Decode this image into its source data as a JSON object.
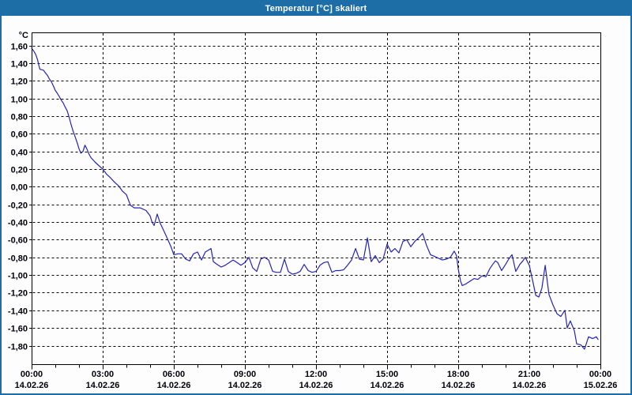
{
  "window": {
    "title": "Temperatur [°C] skaliert"
  },
  "colors": {
    "titlebar_background": "#1d6da6",
    "window_border": "#1d6da6",
    "title_text": "#ffffff",
    "client_background": "#fdfdfd",
    "plot_frame": "#000000",
    "grid": "#000000",
    "axis_text": "#000008",
    "series_line": "#2424b4"
  },
  "chart_data": {
    "type": "line",
    "title": "Temperatur [°C] skaliert",
    "xlabel": "",
    "ylabel": "°C",
    "grid": true,
    "legend_position": "none",
    "ylim": [
      -1.8,
      1.6
    ],
    "y_tick_step": 0.2,
    "y_tick_labels": [
      "1,60",
      "1,40",
      "1,20",
      "1,00",
      "0,80",
      "0,60",
      "0,40",
      "0,20",
      "0,00",
      "-0,20",
      "-0,40",
      "-0,60",
      "-0,80",
      "-1,00",
      "-1,20",
      "-1,40",
      "-1,60",
      "-1,80"
    ],
    "xlim_hours": [
      0,
      24
    ],
    "minor_tick_every_hours": 1,
    "x_ticks": [
      {
        "hour": 0,
        "time": "00:00",
        "date": "14.02.26"
      },
      {
        "hour": 3,
        "time": "03:00",
        "date": "14.02.26"
      },
      {
        "hour": 6,
        "time": "06:00",
        "date": "14.02.26"
      },
      {
        "hour": 9,
        "time": "09:00",
        "date": "14.02.26"
      },
      {
        "hour": 12,
        "time": "12:00",
        "date": "14.02.26"
      },
      {
        "hour": 15,
        "time": "15:00",
        "date": "14.02.26"
      },
      {
        "hour": 18,
        "time": "18:00",
        "date": "14.02.26"
      },
      {
        "hour": 21,
        "time": "21:00",
        "date": "14.02.26"
      },
      {
        "hour": 24,
        "time": "00:00",
        "date": "15.02.26"
      }
    ],
    "series": [
      {
        "name": "Temperatur",
        "color": "#2424b4",
        "points_hour_value": [
          [
            0,
            1.57
          ],
          [
            0.08,
            1.54
          ],
          [
            0.17,
            1.5
          ],
          [
            0.25,
            1.44
          ],
          [
            0.3,
            1.38
          ],
          [
            0.35,
            1.33
          ],
          [
            0.5,
            1.32
          ],
          [
            0.58,
            1.29
          ],
          [
            0.67,
            1.26
          ],
          [
            0.75,
            1.22
          ],
          [
            0.83,
            1.19
          ],
          [
            0.92,
            1.14
          ],
          [
            1,
            1.09
          ],
          [
            1.08,
            1.06
          ],
          [
            1.17,
            1.02
          ],
          [
            1.25,
            0.98
          ],
          [
            1.33,
            0.95
          ],
          [
            1.42,
            0.9
          ],
          [
            1.5,
            0.86
          ],
          [
            1.58,
            0.79
          ],
          [
            1.67,
            0.7
          ],
          [
            1.75,
            0.63
          ],
          [
            1.83,
            0.57
          ],
          [
            1.92,
            0.5
          ],
          [
            2,
            0.43
          ],
          [
            2.08,
            0.38
          ],
          [
            2.17,
            0.4
          ],
          [
            2.25,
            0.47
          ],
          [
            2.33,
            0.43
          ],
          [
            2.42,
            0.37
          ],
          [
            2.5,
            0.33
          ],
          [
            2.67,
            0.28
          ],
          [
            2.83,
            0.24
          ],
          [
            3,
            0.2
          ],
          [
            3.17,
            0.14
          ],
          [
            3.33,
            0.1
          ],
          [
            3.5,
            0.05
          ],
          [
            3.67,
            0.01
          ],
          [
            3.83,
            -0.05
          ],
          [
            4,
            -0.09
          ],
          [
            4.17,
            -0.21
          ],
          [
            4.33,
            -0.24
          ],
          [
            4.58,
            -0.24
          ],
          [
            4.83,
            -0.27
          ],
          [
            5,
            -0.33
          ],
          [
            5.08,
            -0.4
          ],
          [
            5.17,
            -0.44
          ],
          [
            5.3,
            -0.31
          ],
          [
            5.42,
            -0.41
          ],
          [
            5.58,
            -0.5
          ],
          [
            5.75,
            -0.6
          ],
          [
            5.88,
            -0.68
          ],
          [
            6,
            -0.77
          ],
          [
            6.17,
            -0.76
          ],
          [
            6.33,
            -0.76
          ],
          [
            6.5,
            -0.82
          ],
          [
            6.67,
            -0.84
          ],
          [
            6.83,
            -0.76
          ],
          [
            7,
            -0.74
          ],
          [
            7.17,
            -0.83
          ],
          [
            7.33,
            -0.74
          ],
          [
            7.57,
            -0.7
          ],
          [
            7.67,
            -0.85
          ],
          [
            7.83,
            -0.88
          ],
          [
            8,
            -0.91
          ],
          [
            8.17,
            -0.89
          ],
          [
            8.5,
            -0.83
          ],
          [
            8.67,
            -0.86
          ],
          [
            8.83,
            -0.89
          ],
          [
            9,
            -0.86
          ],
          [
            9.17,
            -0.8
          ],
          [
            9.33,
            -0.92
          ],
          [
            9.5,
            -0.96
          ],
          [
            9.67,
            -0.82
          ],
          [
            9.83,
            -0.8
          ],
          [
            10,
            -0.83
          ],
          [
            10.17,
            -0.96
          ],
          [
            10.33,
            -0.97
          ],
          [
            10.5,
            -0.97
          ],
          [
            10.67,
            -0.82
          ],
          [
            10.83,
            -0.96
          ],
          [
            11,
            -0.99
          ],
          [
            11.17,
            -0.98
          ],
          [
            11.33,
            -0.96
          ],
          [
            11.5,
            -0.88
          ],
          [
            11.67,
            -0.95
          ],
          [
            11.83,
            -0.97
          ],
          [
            12,
            -0.96
          ],
          [
            12.17,
            -0.89
          ],
          [
            12.33,
            -0.86
          ],
          [
            12.5,
            -0.85
          ],
          [
            12.67,
            -0.97
          ],
          [
            12.83,
            -0.95
          ],
          [
            13,
            -0.95
          ],
          [
            13.17,
            -0.94
          ],
          [
            13.33,
            -0.89
          ],
          [
            13.5,
            -0.83
          ],
          [
            13.67,
            -0.7
          ],
          [
            13.83,
            -0.82
          ],
          [
            14,
            -0.83
          ],
          [
            14.17,
            -0.58
          ],
          [
            14.33,
            -0.85
          ],
          [
            14.5,
            -0.78
          ],
          [
            14.67,
            -0.86
          ],
          [
            14.83,
            -0.82
          ],
          [
            15,
            -0.65
          ],
          [
            15.17,
            -0.74
          ],
          [
            15.33,
            -0.7
          ],
          [
            15.5,
            -0.75
          ],
          [
            15.67,
            -0.62
          ],
          [
            15.83,
            -0.6
          ],
          [
            16,
            -0.68
          ],
          [
            16.17,
            -0.62
          ],
          [
            16.33,
            -0.58
          ],
          [
            16.5,
            -0.53
          ],
          [
            16.67,
            -0.67
          ],
          [
            16.83,
            -0.77
          ],
          [
            17,
            -0.79
          ],
          [
            17.17,
            -0.81
          ],
          [
            17.33,
            -0.83
          ],
          [
            17.5,
            -0.82
          ],
          [
            17.67,
            -0.8
          ],
          [
            17.83,
            -0.73
          ],
          [
            17.93,
            -0.78
          ],
          [
            18,
            -0.93
          ],
          [
            18.1,
            -1.07
          ],
          [
            18.17,
            -1.12
          ],
          [
            18.33,
            -1.1
          ],
          [
            18.5,
            -1.07
          ],
          [
            18.67,
            -1.04
          ],
          [
            18.83,
            -1.05
          ],
          [
            19,
            -1.01
          ],
          [
            19.17,
            -1.02
          ],
          [
            19.33,
            -0.93
          ],
          [
            19.43,
            -0.89
          ],
          [
            19.57,
            -0.84
          ],
          [
            19.67,
            -0.86
          ],
          [
            19.83,
            -0.95
          ],
          [
            20,
            -0.88
          ],
          [
            20.13,
            -0.82
          ],
          [
            20.27,
            -0.77
          ],
          [
            20.43,
            -0.96
          ],
          [
            20.6,
            -0.88
          ],
          [
            20.73,
            -0.84
          ],
          [
            20.83,
            -0.8
          ],
          [
            21,
            -0.89
          ],
          [
            21.17,
            -1.1
          ],
          [
            21.27,
            -1.23
          ],
          [
            21.4,
            -1.25
          ],
          [
            21.53,
            -1.15
          ],
          [
            21.67,
            -0.89
          ],
          [
            21.83,
            -1.22
          ],
          [
            22,
            -1.34
          ],
          [
            22.17,
            -1.44
          ],
          [
            22.33,
            -1.47
          ],
          [
            22.5,
            -1.4
          ],
          [
            22.6,
            -1.6
          ],
          [
            22.73,
            -1.52
          ],
          [
            22.9,
            -1.63
          ],
          [
            23,
            -1.78
          ],
          [
            23.17,
            -1.79
          ],
          [
            23.33,
            -1.84
          ],
          [
            23.5,
            -1.7
          ],
          [
            23.67,
            -1.72
          ],
          [
            23.83,
            -1.7
          ],
          [
            23.9,
            -1.73
          ]
        ]
      }
    ]
  }
}
